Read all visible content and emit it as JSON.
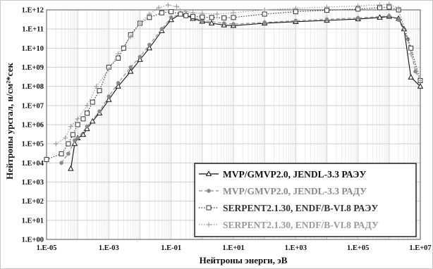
{
  "chart_data": {
    "type": "line",
    "title": "",
    "xlabel": "Нейтроны энерги, эВ",
    "ylabel": "Нейтроны урсгал, н/см²*сек",
    "x_scale": "log",
    "y_scale": "log",
    "xlim": [
      1e-05,
      10000000.0
    ],
    "ylim": [
      1,
      1000000000000.0
    ],
    "x_tick_labels": [
      "1.E-05",
      "1.E-03",
      "1.E-01",
      "1.E+01",
      "1.E+03",
      "1.E+05",
      "1.E+07"
    ],
    "y_tick_labels": [
      "1.E+00",
      "1.E+01",
      "1.E+02",
      "1.E+03",
      "1.E+04",
      "1.E+05",
      "1.E+06",
      "1.E+07",
      "1.E+08",
      "1.E+09",
      "1.E+10",
      "1.E+11",
      "1.E+12"
    ],
    "grid": true,
    "legend_position": "bottom-right",
    "series": [
      {
        "name": "MVP/GMVP2.0, JENDL-3.3 РАЭУ",
        "color": "#111111",
        "dash": "solid",
        "marker": "triangle",
        "x": [
          6e-05,
          8e-05,
          0.0001,
          0.00015,
          0.0002,
          0.0003,
          0.0005,
          0.001,
          0.002,
          0.005,
          0.01,
          0.02,
          0.05,
          0.1,
          0.2,
          0.3,
          0.5,
          1,
          2,
          5,
          10,
          100,
          1000,
          10000.0,
          100000.0,
          500000.0,
          1000000.0,
          2000000.0,
          3000000.0,
          5000000.0,
          10000000.0
        ],
        "y": [
          5000.0,
          100000.0,
          200000.0,
          300000.0,
          600000.0,
          1500000.0,
          4000000.0,
          20000000.0,
          100000000.0,
          600000000.0,
          2500000000.0,
          10000000000.0,
          80000000000.0,
          300000000000.0,
          600000000000.0,
          550000000000.0,
          350000000000.0,
          250000000000.0,
          200000000000.0,
          160000000000.0,
          150000000000.0,
          200000000000.0,
          240000000000.0,
          280000000000.0,
          330000000000.0,
          400000000000.0,
          450000000000.0,
          350000000000.0,
          100000000000.0,
          300000000.0,
          100000000.0
        ]
      },
      {
        "name": "MVP/GMVP2.0, JENDL-3.3 РАДУ",
        "color": "#8a8a8a",
        "dash": "dash",
        "marker": "circle",
        "x": [
          3e-05,
          5e-05,
          8e-05,
          0.0001,
          0.0002,
          0.0005,
          0.001,
          0.002,
          0.005,
          0.01,
          0.02,
          0.05,
          0.1,
          0.2,
          0.5,
          1,
          5,
          10,
          100,
          1000,
          10000.0,
          100000.0,
          1000000.0,
          2000000.0,
          4000000.0,
          7000000.0,
          10000000.0
        ],
        "y": [
          10000.0,
          30000.0,
          150000.0,
          200000.0,
          800000.0,
          5000000.0,
          30000000.0,
          150000000.0,
          1000000000.0,
          3500000000.0,
          15000000000.0,
          100000000000.0,
          400000000000.0,
          600000000000.0,
          400000000000.0,
          280000000000.0,
          200000000000.0,
          180000000000.0,
          220000000000.0,
          270000000000.0,
          320000000000.0,
          380000000000.0,
          480000000000.0,
          300000000000.0,
          30000000000.0,
          600000000.0,
          200000000.0
        ]
      },
      {
        "name": "SERPENT2.1.30, ENDF/B-VI.8 РАЭУ",
        "color": "#333333",
        "dash": "dot",
        "marker": "square",
        "x": [
          1e-05,
          3e-05,
          5e-05,
          7e-05,
          0.0001,
          0.00015,
          0.0002,
          0.0003,
          0.0005,
          0.001,
          0.002,
          0.003,
          0.005,
          0.01,
          0.02,
          0.05,
          0.1,
          0.2,
          0.3,
          0.5,
          1,
          2,
          5,
          10,
          100,
          1000,
          10000.0,
          100000.0,
          500000.0,
          1000000.0,
          2000000.0,
          5000000.0,
          10000000.0
        ],
        "y": [
          15000.0,
          30000.0,
          100000.0,
          300000.0,
          1000000.0,
          2000000.0,
          4000000.0,
          15000000.0,
          60000000.0,
          1000000000.0,
          3000000000.0,
          10000000000.0,
          50000000000.0,
          200000000000.0,
          400000000000.0,
          700000000000.0,
          800000000000.0,
          600000000000.0,
          500000000000.0,
          450000000000.0,
          420000000000.0,
          400000000000.0,
          380000000000.0,
          400000000000.0,
          600000000000.0,
          800000000000.0,
          950000000000.0,
          1100000000000.0,
          1300000000000.0,
          1400000000000.0,
          1000000000000.0,
          10000000000.0,
          200000000.0
        ]
      },
      {
        "name": "SERPENT2.1.30, ENDF/B-VI.8 РАДУ",
        "color": "#9a9a9a",
        "dash": "dot",
        "marker": "plus",
        "x": [
          2e-05,
          4e-05,
          6e-05,
          0.0001,
          0.0002,
          0.0004,
          0.001,
          0.002,
          0.005,
          0.01,
          0.02,
          0.04,
          0.08,
          0.15,
          0.3,
          0.5,
          1,
          3,
          10,
          100,
          1000,
          10000.0,
          100000.0,
          500000.0,
          1000000.0,
          2000000.0,
          5000000.0,
          10000000.0
        ],
        "y": [
          100000.0,
          200000.0,
          800000.0,
          2000000.0,
          10000000.0,
          100000000.0,
          800000000.0,
          5000000000.0,
          40000000000.0,
          200000000000.0,
          600000000000.0,
          1300000000000.0,
          1800000000000.0,
          1500000000000.0,
          800000000000.0,
          700000000000.0,
          650000000000.0,
          600000000000.0,
          700000000000.0,
          1000000000000.0,
          1200000000000.0,
          1400000000000.0,
          1600000000000.0,
          1800000000000.0,
          2000000000000.0,
          1200000000000.0,
          5000000000.0,
          200000000.0
        ]
      }
    ]
  }
}
